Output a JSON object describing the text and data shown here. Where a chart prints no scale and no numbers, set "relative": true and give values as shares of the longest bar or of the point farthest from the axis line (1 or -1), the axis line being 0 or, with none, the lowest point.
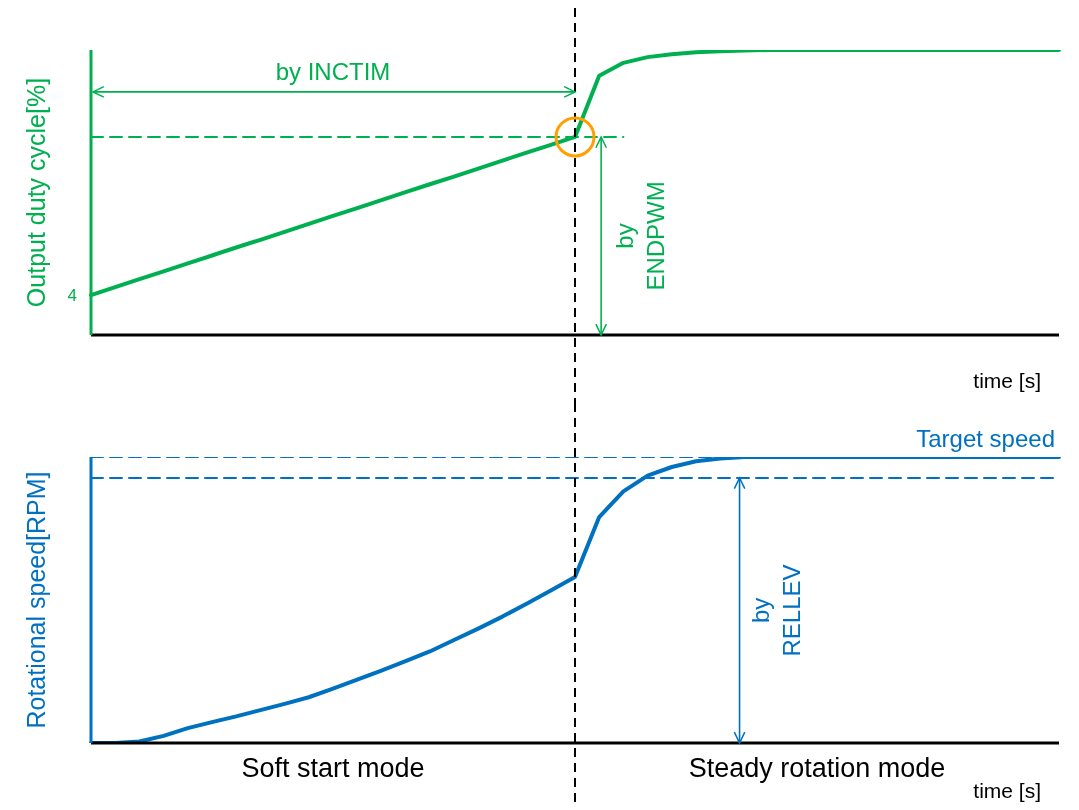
{
  "chart_data": [
    {
      "type": "line",
      "relative": true,
      "ylabel": "Output duty cycle[%]",
      "xlabel": "time [s]",
      "categories": [
        null,
        null,
        null,
        null,
        null,
        null,
        null,
        null,
        null,
        null,
        null,
        null,
        null,
        null,
        null,
        null,
        null,
        null,
        null,
        null,
        null,
        null,
        null,
        null,
        null,
        null,
        null,
        null,
        null,
        null,
        null,
        null,
        null,
        null,
        null,
        null,
        null,
        null,
        null,
        null,
        null
      ],
      "series": [
        {
          "color": "#00b050",
          "values": [
            0.14,
            0.168,
            0.196,
            0.223,
            0.251,
            0.279,
            0.307,
            0.334,
            0.362,
            0.39,
            0.418,
            0.445,
            0.473,
            0.501,
            0.529,
            0.556,
            0.584,
            0.612,
            0.64,
            0.667,
            0.695,
            0.91,
            0.955,
            0.975,
            0.985,
            0.992,
            0.996,
            0.998,
            1,
            1,
            1,
            1,
            1,
            1,
            1,
            1,
            1,
            1,
            1,
            1,
            1
          ]
        },
        {
          "color": "#00b050",
          "line_style": "dashed",
          "values": [
            0.695,
            0.695,
            0.695,
            0.695,
            0.695,
            0.695,
            0.695,
            0.695,
            0.695,
            0.695,
            0.695,
            0.695,
            0.695,
            0.695,
            0.695,
            0.695,
            0.695,
            0.695,
            0.695,
            0.695,
            0.695,
            0.695,
            0.695,
            null,
            null,
            null,
            null,
            null,
            null,
            null,
            null,
            null,
            null,
            null,
            null,
            null,
            null,
            null,
            null,
            null,
            null
          ]
        }
      ],
      "annotations": [
        "4",
        "by INCTIM",
        "by ENDPWM"
      ]
    },
    {
      "type": "line",
      "relative": true,
      "ylabel": "Rotational speed[RPM]",
      "xlabel": "time [s]",
      "categories": [
        null,
        null,
        null,
        null,
        null,
        null,
        null,
        null,
        null,
        null,
        null,
        null,
        null,
        null,
        null,
        null,
        null,
        null,
        null,
        null,
        null,
        null,
        null,
        null,
        null,
        null,
        null,
        null,
        null,
        null,
        null,
        null,
        null,
        null,
        null,
        null,
        null,
        null,
        null,
        null,
        null
      ],
      "series": [
        {
          "color": "#0070c0",
          "values": [
            0,
            0,
            0.005,
            0.025,
            0.052,
            0.073,
            0.093,
            0.115,
            0.137,
            0.16,
            0.19,
            0.222,
            0.253,
            0.286,
            0.32,
            0.36,
            0.4,
            0.442,
            0.487,
            0.533,
            0.58,
            0.79,
            0.88,
            0.935,
            0.965,
            0.985,
            0.995,
            1,
            1,
            1,
            1,
            1,
            1,
            1,
            1,
            1,
            1,
            1,
            1,
            1,
            1
          ]
        },
        {
          "name": "Target speed",
          "color": "#0070c0",
          "line_style": "dashed",
          "values": [
            1,
            1,
            1,
            1,
            1,
            1,
            1,
            1,
            1,
            1,
            1,
            1,
            1,
            1,
            1,
            1,
            1,
            1,
            1,
            1,
            1,
            1,
            1,
            1,
            1,
            1,
            1,
            1,
            1,
            1,
            1,
            1,
            1,
            1,
            1,
            1,
            1,
            1,
            1,
            1,
            1
          ]
        },
        {
          "color": "#0070c0",
          "line_style": "dashed",
          "values": [
            0.927,
            0.927,
            0.927,
            0.927,
            0.927,
            0.927,
            0.927,
            0.927,
            0.927,
            0.927,
            0.927,
            0.927,
            0.927,
            0.927,
            0.927,
            0.927,
            0.927,
            0.927,
            0.927,
            0.927,
            0.927,
            0.927,
            0.927,
            0.927,
            0.927,
            0.927,
            0.927,
            0.927,
            0.927,
            0.927,
            0.927,
            0.927,
            0.927,
            0.927,
            0.927,
            0.927,
            0.927,
            0.927,
            0.927,
            0.927,
            0.927
          ]
        }
      ],
      "annotations": [
        "by RELLEV",
        "Soft start mode",
        "Steady rotation mode"
      ]
    }
  ]
}
